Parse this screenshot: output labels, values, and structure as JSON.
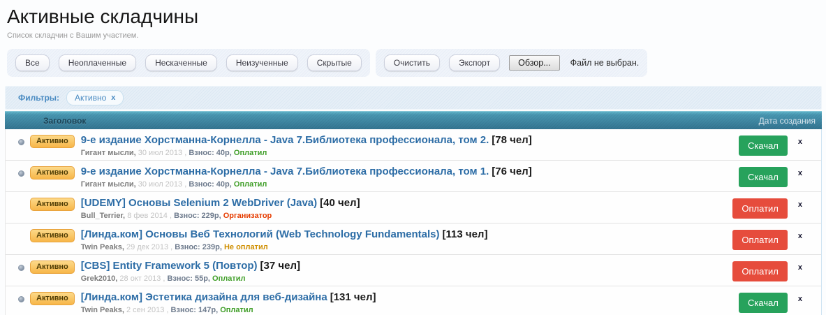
{
  "page": {
    "title": "Активные складчины",
    "subtitle": "Список складчин с Вашим участием."
  },
  "toolbar": {
    "filter_buttons": [
      "Все",
      "Неоплаченные",
      "Нескаченные",
      "Неизученные",
      "Скрытые"
    ],
    "action_buttons": [
      "Очистить",
      "Экспорт"
    ],
    "file_input": {
      "browse_label": "Обзор...",
      "status": "Файл не выбран."
    }
  },
  "filters": {
    "label": "Фильтры:",
    "tags": [
      {
        "label": "Активно",
        "remove": "x"
      }
    ]
  },
  "table": {
    "columns": {
      "title": "Заголовок",
      "date": "Дата создания"
    },
    "rows": [
      {
        "has_dot": true,
        "badge": "Активно",
        "title": "9-е издание Хорстманна-Корнелла - Java 7.Библиотека профессионала, том 2.",
        "count": "[78 чел]",
        "user": "Гигант мысли,",
        "date": "30 июл 2013 ,",
        "fee": "Взнос: 40р,",
        "status": "Оплатил",
        "status_type": "paid",
        "button": "Скачал",
        "button_type": "downloaded",
        "close": "x"
      },
      {
        "has_dot": true,
        "badge": "Активно",
        "title": "9-е издание Хорстманна-Корнелла - Java 7.Библиотека профессионала, том 1.",
        "count": "[76 чел]",
        "user": "Гигант мысли,",
        "date": "30 июл 2013 ,",
        "fee": "Взнос: 40р,",
        "status": "Оплатил",
        "status_type": "paid",
        "button": "Скачал",
        "button_type": "downloaded",
        "close": "x"
      },
      {
        "has_dot": false,
        "badge": "Активно",
        "title": "[UDEMY] Основы Selenium 2 WebDriver (Java)",
        "count": "[40 чел]",
        "user": "Bull_Terrier,",
        "date": "8 фев 2014 ,",
        "fee": "Взнос: 229р,",
        "status": "Организатор",
        "status_type": "organizer",
        "button": "Оплатил",
        "button_type": "paid",
        "close": "x"
      },
      {
        "has_dot": false,
        "badge": "Активно",
        "title": "[Линда.ком] Основы Веб Технологий (Web Technology Fundamentals)",
        "count": "[113 чел]",
        "user": "Twin Peaks,",
        "date": "29 дек 2013 ,",
        "fee": "Взнос: 239р,",
        "status": "Не оплатил",
        "status_type": "unpaid",
        "button": "Оплатил",
        "button_type": "paid",
        "close": "x"
      },
      {
        "has_dot": true,
        "badge": "Активно",
        "title": "[CBS] Entity Framework 5 (Повтор)",
        "count": "[37 чел]",
        "user": "Grek2010,",
        "date": "28 окт 2013 ,",
        "fee": "Взнос: 55р,",
        "status": "Оплатил",
        "status_type": "paid",
        "button": "Оплатил",
        "button_type": "paid",
        "close": "x"
      },
      {
        "has_dot": true,
        "badge": "Активно",
        "title": "[Линда.ком] Эстетика дизайна для веб-дизайна",
        "count": "[131 чел]",
        "user": "Twin Peaks,",
        "date": "2 сен 2013 ,",
        "fee": "Взнос: 147р,",
        "status": "Оплатил",
        "status_type": "paid",
        "button": "Скачал",
        "button_type": "downloaded",
        "close": "x"
      }
    ]
  },
  "colors": {
    "header_teal_top": "#5fb3c9",
    "header_teal_bottom": "#347591",
    "badge_bg": "#f7b648",
    "badge_border": "#e8a33d",
    "button_green": "#27a25c",
    "button_red": "#e64c3c",
    "link_blue": "#2d6da6",
    "status_paid_green": "#3f9e27",
    "status_organizer_red": "#e63c00",
    "status_unpaid_orange": "#cf8e00",
    "filter_blue": "#4a8bc2"
  }
}
